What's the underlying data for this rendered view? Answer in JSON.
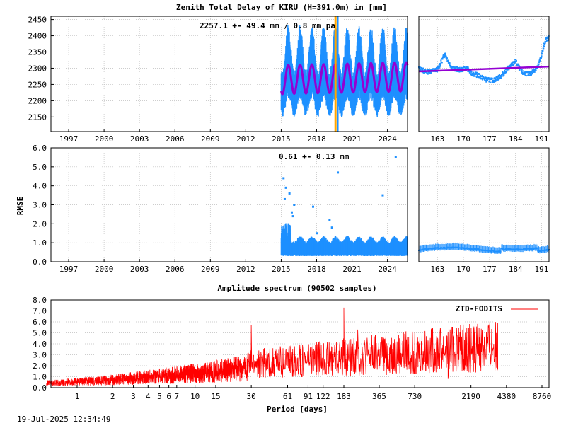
{
  "title": "Zenith Total Delay of KIRU (H=391.0m) in [mm]",
  "timestamp": "19-Jul-2025 12:34:49",
  "chart_data": [
    {
      "id": "ztd",
      "type": "scatter",
      "annotation": "2257.1 +-  49.4 mm /  0.8 mm pa",
      "x_range": [
        1995.5,
        2025.7
      ],
      "y_range": [
        2105,
        2460
      ],
      "y_ticks": [
        "2150",
        "2200",
        "2250",
        "2300",
        "2350",
        "2400",
        "2450"
      ],
      "x_ticks": [
        "1997",
        "2000",
        "2003",
        "2006",
        "2009",
        "2012",
        "2015",
        "2018",
        "2021",
        "2024"
      ],
      "data_start": 2015.0,
      "mean": 2257.1,
      "seasonal_amplitude": 49.4,
      "trend_mm_per_year": 0.8,
      "event_lines": [
        2019.6,
        2019.8
      ],
      "colors": {
        "data": "#1e90ff",
        "model": "#9400d3",
        "event": "#ffa500",
        "event2": "#1e90ff"
      }
    },
    {
      "id": "ztd-zoom",
      "type": "scatter",
      "x_range": [
        158,
        193
      ],
      "y_range": [
        2105,
        2460
      ],
      "x_ticks": [
        "163",
        "170",
        "177",
        "184",
        "191"
      ],
      "trend_start": 2290,
      "trend_end": 2305
    },
    {
      "id": "rmse",
      "type": "scatter",
      "ylabel": "RMSE",
      "annotation": "0.61 +-  0.13 mm",
      "x_range": [
        1995.5,
        2025.7
      ],
      "y_range": [
        0,
        6
      ],
      "y_ticks": [
        "0.0",
        "1.0",
        "2.0",
        "3.0",
        "4.0",
        "5.0",
        "6.0"
      ],
      "x_ticks": [
        "1997",
        "2000",
        "2003",
        "2006",
        "2009",
        "2012",
        "2015",
        "2018",
        "2021",
        "2024"
      ],
      "mean": 0.61,
      "outliers": [
        {
          "x": 2015.2,
          "y": 4.4
        },
        {
          "x": 2015.4,
          "y": 3.9
        },
        {
          "x": 2015.7,
          "y": 3.6
        },
        {
          "x": 2015.3,
          "y": 3.3
        },
        {
          "x": 2016.1,
          "y": 3.0
        },
        {
          "x": 2017.7,
          "y": 2.9
        },
        {
          "x": 2019.1,
          "y": 2.2
        },
        {
          "x": 2019.3,
          "y": 1.8
        },
        {
          "x": 2019.8,
          "y": 4.7
        },
        {
          "x": 2023.6,
          "y": 3.5
        },
        {
          "x": 2024.7,
          "y": 5.5
        },
        {
          "x": 2016.0,
          "y": 2.4
        },
        {
          "x": 2015.9,
          "y": 2.6
        },
        {
          "x": 2018.0,
          "y": 1.5
        }
      ]
    },
    {
      "id": "rmse-zoom",
      "type": "scatter",
      "x_range": [
        158,
        193
      ],
      "y_range": [
        0,
        6
      ],
      "x_ticks": [
        "163",
        "170",
        "177",
        "184",
        "191"
      ]
    },
    {
      "id": "spectrum",
      "type": "line",
      "title": "Amplitude spectrum (90502 samples)",
      "xlabel": "Period [days]",
      "legend": "ZTD-FODITS",
      "legend_position": "top-right",
      "y_range": [
        0,
        8
      ],
      "y_ticks": [
        "0.0",
        "1.0",
        "2.0",
        "3.0",
        "4.0",
        "5.0",
        "6.0",
        "7.0",
        "8.0"
      ],
      "x_ticks": [
        "1",
        "2",
        "3",
        "4",
        "5",
        "6",
        "7",
        "10",
        "15",
        "30",
        "61",
        "91",
        "122",
        "183",
        "365",
        "730",
        "2190",
        "4380",
        "8760"
      ],
      "peaks": [
        {
          "x": 30,
          "y": 5.7
        },
        {
          "x": 61,
          "y": 3.2
        },
        {
          "x": 122,
          "y": 3.7
        },
        {
          "x": 183,
          "y": 7.3
        },
        {
          "x": 240,
          "y": 5.3
        },
        {
          "x": 365,
          "y": 3.5
        },
        {
          "x": 500,
          "y": 4.1
        },
        {
          "x": 730,
          "y": 5.0
        },
        {
          "x": 1400,
          "y": 0.8
        },
        {
          "x": 2000,
          "y": 1.9
        },
        {
          "x": 3700,
          "y": 1.7
        }
      ],
      "color": "#ff0000"
    }
  ]
}
